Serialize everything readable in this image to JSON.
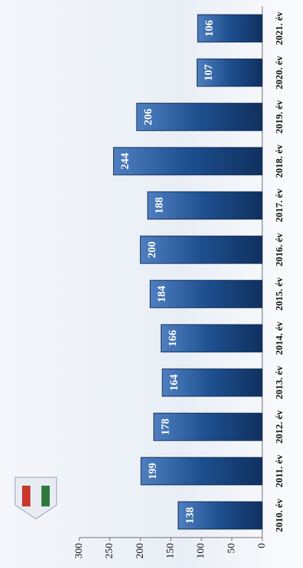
{
  "chart_data": {
    "type": "bar",
    "categories": [
      "2010. év",
      "2011. év",
      "2012. év",
      "2013. év",
      "2014. év",
      "2015. év",
      "2016. év",
      "2017. év",
      "2018. év",
      "2019. év",
      "2020. év",
      "2021. év"
    ],
    "values": [
      138,
      199,
      178,
      164,
      166,
      184,
      200,
      188,
      244,
      206,
      107,
      106
    ],
    "color": "#1d4f8f",
    "ylim": [
      0,
      300
    ],
    "yticks": [
      0,
      50,
      100,
      150,
      200,
      250,
      300
    ]
  }
}
